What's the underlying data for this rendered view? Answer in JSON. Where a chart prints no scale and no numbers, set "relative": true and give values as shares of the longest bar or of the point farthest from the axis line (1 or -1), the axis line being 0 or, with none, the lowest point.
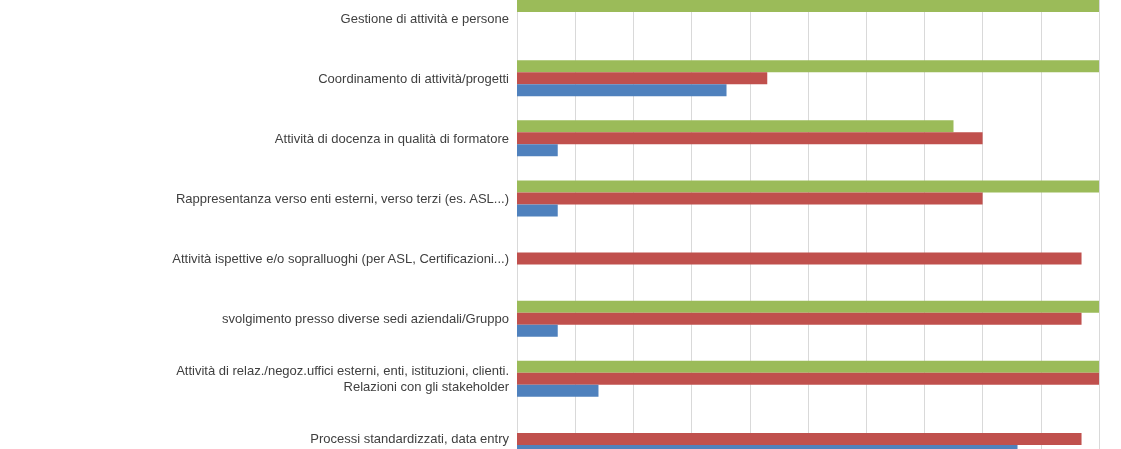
{
  "chart_data": {
    "type": "bar",
    "orientation": "horizontal",
    "relative": true,
    "grid": "x",
    "categories": [
      "Gestione di attività e persone",
      "Coordinamento di attività/progetti",
      "Attività di docenza in qualità di formatore",
      "Rappresentanza verso enti esterni, verso terzi (es. ASL...)",
      "Attività ispettive e/o sopralluoghi (per ASL, Certificazioni...)",
      "svolgimento presso diverse sedi aziendali/Gruppo",
      "Attività di relaz./negoz.uffici esterni, enti, istituzioni, clienti.\nRelazioni con gli stakeholder",
      "Processi standardizzati, data entry"
    ],
    "series": [
      {
        "color": "#9bbb59",
        "values": [
          1,
          1,
          0.75,
          1,
          null,
          1,
          1,
          null
        ]
      },
      {
        "color": "#c0504d",
        "values": [
          null,
          0.43,
          0.8,
          0.8,
          0.97,
          0.97,
          1,
          0.97
        ]
      },
      {
        "color": "#4f81bd",
        "values": [
          null,
          0.36,
          0.07,
          0.07,
          null,
          0.07,
          0.14,
          0.86
        ]
      }
    ]
  }
}
